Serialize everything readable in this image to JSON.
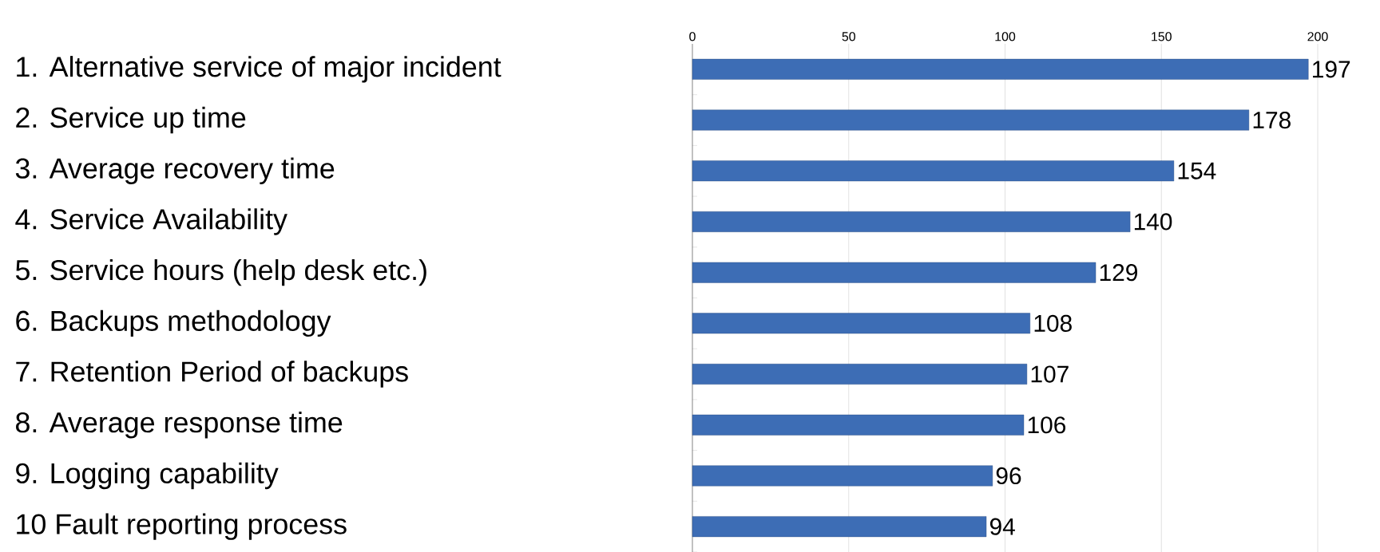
{
  "chart_data": {
    "type": "bar",
    "orientation": "horizontal",
    "categories": [
      "1. Alternative service of major incident",
      "2. Service up time",
      "3. Average recovery time",
      "4. Service Availability",
      "5. Service hours (help desk etc.)",
      "6. Backups methodology",
      "7. Retention Period of backups",
      "8. Average response time",
      "9. Logging capability",
      "10 Fault reporting process"
    ],
    "values": [
      197,
      178,
      154,
      140,
      129,
      108,
      107,
      106,
      96,
      94
    ],
    "color": "#3d6db5",
    "xlim": [
      0,
      200
    ],
    "xticks": [
      0,
      50,
      100,
      150,
      200
    ],
    "grid": "x",
    "data_labels": true
  }
}
